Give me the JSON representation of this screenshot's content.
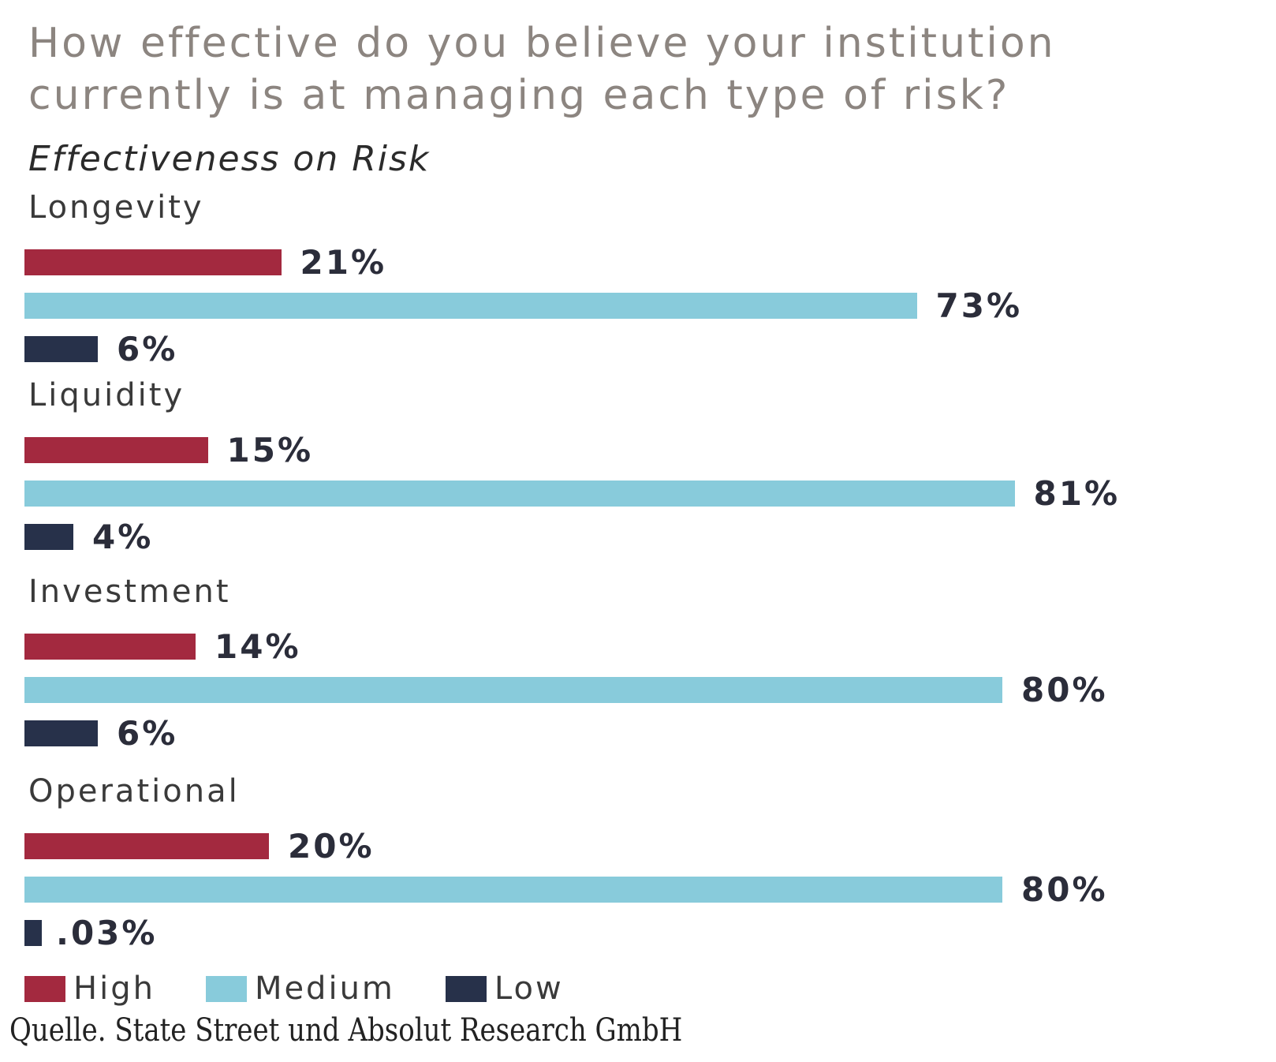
{
  "chart_data": {
    "type": "bar",
    "orientation": "horizontal",
    "title": "How effective do you believe your institution currently is at managing each type of risk?",
    "subtitle": "Effectiveness on Risk",
    "categories": [
      "Longevity",
      "Liquidity",
      "Investment",
      "Operational"
    ],
    "series": [
      {
        "name": "High",
        "color": "#a3293f",
        "values": [
          21,
          15,
          14,
          20
        ],
        "labels": [
          "21%",
          "15%",
          "14%",
          "20%"
        ]
      },
      {
        "name": "Medium",
        "color": "#88cbdb",
        "values": [
          73,
          81,
          80,
          80
        ],
        "labels": [
          "73%",
          "81%",
          "80%",
          "80%"
        ]
      },
      {
        "name": "Low",
        "color": "#27314a",
        "values": [
          6,
          4,
          6,
          0.03
        ],
        "labels": [
          "6%",
          "4%",
          "6%",
          ".03%"
        ]
      }
    ],
    "xlim": [
      0,
      100
    ],
    "grid": false,
    "legend": "bottom-left",
    "source": "Quelle. State Street und Absolut Research GmbH"
  }
}
